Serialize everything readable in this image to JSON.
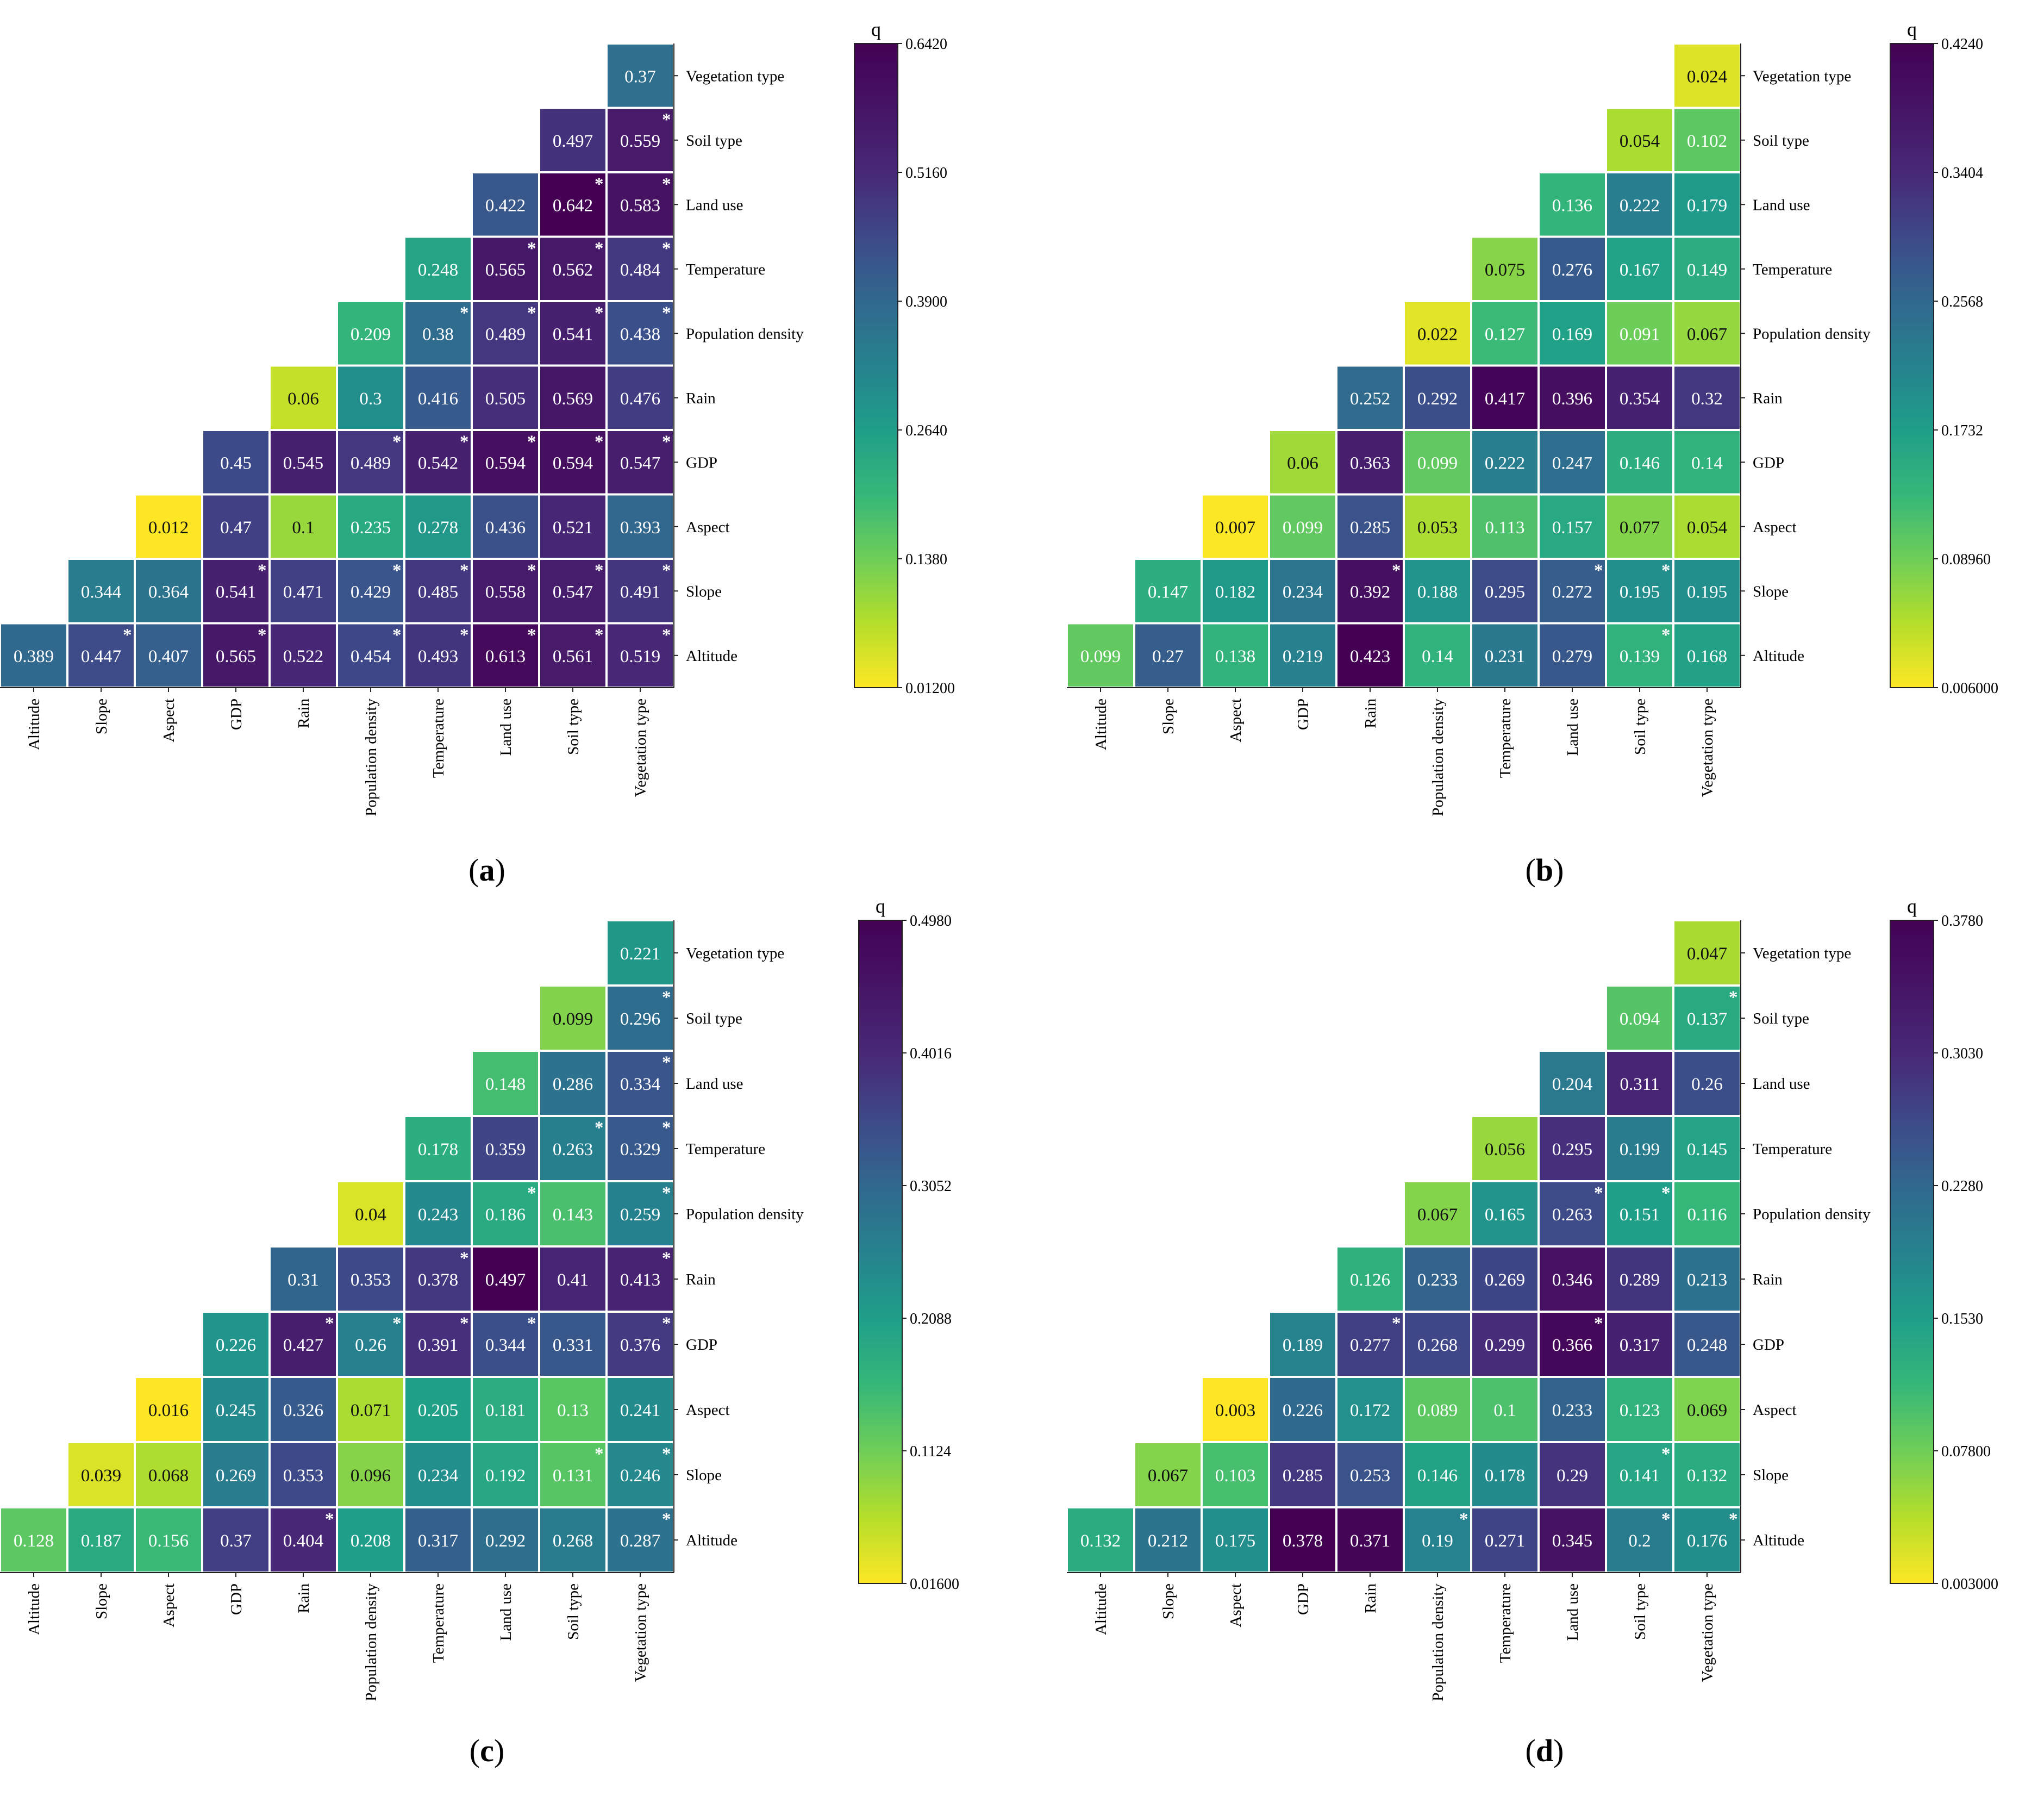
{
  "chart_data": [
    {
      "type": "heatmap",
      "panel_label": "(a)",
      "panel_letter": "a",
      "legend_title": "q",
      "colorbar_ticks": [
        "0.6420",
        "0.5160",
        "0.3900",
        "0.2640",
        "0.1380",
        "0.01200"
      ],
      "colorbar_range": [
        0.012,
        0.642
      ],
      "x_categories": [
        "Altitude",
        "Slope",
        "Aspect",
        "GDP",
        "Rain",
        "Population density",
        "Temperature",
        "Land use",
        "Soil type",
        "Vegetation type"
      ],
      "y_categories": [
        "Altitude",
        "Slope",
        "Aspect",
        "GDP",
        "Rain",
        "Population density",
        "Temperature",
        "Land use",
        "Soil type",
        "Vegetation type"
      ],
      "rows": [
        {
          "label": "Altitude",
          "values": [
            "0.389",
            "0.447",
            "0.407",
            "0.565",
            "0.522",
            "0.454",
            "0.493",
            "0.613",
            "0.561",
            "0.519"
          ],
          "stars": [
            0,
            1,
            0,
            1,
            0,
            1,
            1,
            1,
            1,
            1
          ]
        },
        {
          "label": "Slope",
          "values": [
            "0.344",
            "0.364",
            "0.541",
            "0.471",
            "0.429",
            "0.485",
            "0.558",
            "0.547",
            "0.491"
          ],
          "stars": [
            0,
            0,
            1,
            0,
            1,
            1,
            1,
            1,
            1
          ]
        },
        {
          "label": "Aspect",
          "values": [
            "0.012",
            "0.47",
            "0.1",
            "0.235",
            "0.278",
            "0.436",
            "0.521",
            "0.393"
          ],
          "stars": [
            0,
            0,
            0,
            0,
            0,
            0,
            0,
            0
          ]
        },
        {
          "label": "GDP",
          "values": [
            "0.45",
            "0.545",
            "0.489",
            "0.542",
            "0.594",
            "0.594",
            "0.547"
          ],
          "stars": [
            0,
            0,
            1,
            1,
            1,
            1,
            1
          ]
        },
        {
          "label": "Rain",
          "values": [
            "0.06",
            "0.3",
            "0.416",
            "0.505",
            "0.569",
            "0.476"
          ],
          "stars": [
            0,
            0,
            0,
            0,
            0,
            0
          ]
        },
        {
          "label": "Population density",
          "values": [
            "0.209",
            "0.38",
            "0.489",
            "0.541",
            "0.438"
          ],
          "stars": [
            0,
            1,
            1,
            1,
            1
          ]
        },
        {
          "label": "Temperature",
          "values": [
            "0.248",
            "0.565",
            "0.562",
            "0.484"
          ],
          "stars": [
            0,
            1,
            1,
            1
          ]
        },
        {
          "label": "Land use",
          "values": [
            "0.422",
            "0.642",
            "0.583"
          ],
          "stars": [
            0,
            1,
            1
          ]
        },
        {
          "label": "Soil type",
          "values": [
            "0.497",
            "0.559"
          ],
          "stars": [
            0,
            1
          ]
        },
        {
          "label": "Vegetation type",
          "values": [
            "0.37"
          ],
          "stars": [
            0
          ]
        }
      ]
    },
    {
      "type": "heatmap",
      "panel_label": "(b)",
      "panel_letter": "b",
      "legend_title": "q",
      "colorbar_ticks": [
        "0.4240",
        "0.3404",
        "0.2568",
        "0.1732",
        "0.08960",
        "0.006000"
      ],
      "colorbar_range": [
        0.006,
        0.424
      ],
      "x_categories": [
        "Altitude",
        "Slope",
        "Aspect",
        "GDP",
        "Rain",
        "Population density",
        "Temperature",
        "Land use",
        "Soil type",
        "Vegetation type"
      ],
      "y_categories": [
        "Altitude",
        "Slope",
        "Aspect",
        "GDP",
        "Rain",
        "Population density",
        "Temperature",
        "Land use",
        "Soil type",
        "Vegetation type"
      ],
      "rows": [
        {
          "label": "Altitude",
          "values": [
            "0.099",
            "0.27",
            "0.138",
            "0.219",
            "0.423",
            "0.14",
            "0.231",
            "0.279",
            "0.139",
            "0.168"
          ],
          "stars": [
            0,
            0,
            0,
            0,
            0,
            0,
            0,
            0,
            1,
            0
          ]
        },
        {
          "label": "Slope",
          "values": [
            "0.147",
            "0.182",
            "0.234",
            "0.392",
            "0.188",
            "0.295",
            "0.272",
            "0.195",
            "0.195"
          ],
          "stars": [
            0,
            0,
            0,
            1,
            0,
            0,
            1,
            1,
            0
          ]
        },
        {
          "label": "Aspect",
          "values": [
            "0.007",
            "0.099",
            "0.285",
            "0.053",
            "0.113",
            "0.157",
            "0.077",
            "0.054"
          ],
          "stars": [
            0,
            0,
            0,
            0,
            0,
            0,
            0,
            0
          ]
        },
        {
          "label": "GDP",
          "values": [
            "0.06",
            "0.363",
            "0.099",
            "0.222",
            "0.247",
            "0.146",
            "0.14"
          ],
          "stars": [
            0,
            0,
            0,
            0,
            0,
            0,
            0
          ]
        },
        {
          "label": "Rain",
          "values": [
            "0.252",
            "0.292",
            "0.417",
            "0.396",
            "0.354",
            "0.32"
          ],
          "stars": [
            0,
            0,
            0,
            0,
            0,
            0
          ]
        },
        {
          "label": "Population density",
          "values": [
            "0.022",
            "0.127",
            "0.169",
            "0.091",
            "0.067"
          ],
          "stars": [
            0,
            0,
            0,
            0,
            0
          ]
        },
        {
          "label": "Temperature",
          "values": [
            "0.075",
            "0.276",
            "0.167",
            "0.149"
          ],
          "stars": [
            0,
            0,
            0,
            0
          ]
        },
        {
          "label": "Land use",
          "values": [
            "0.136",
            "0.222",
            "0.179"
          ],
          "stars": [
            0,
            0,
            0
          ]
        },
        {
          "label": "Soil type",
          "values": [
            "0.054",
            "0.102"
          ],
          "stars": [
            0,
            0
          ]
        },
        {
          "label": "Vegetation type",
          "values": [
            "0.024"
          ],
          "stars": [
            0
          ]
        }
      ]
    },
    {
      "type": "heatmap",
      "panel_label": "(c)",
      "panel_letter": "c",
      "legend_title": "q",
      "colorbar_ticks": [
        "0.4980",
        "0.4016",
        "0.3052",
        "0.2088",
        "0.1124",
        "0.01600"
      ],
      "colorbar_range": [
        0.016,
        0.498
      ],
      "x_categories": [
        "Altitude",
        "Slope",
        "Aspect",
        "GDP",
        "Rain",
        "Population density",
        "Temperature",
        "Land use",
        "Soil type",
        "Vegetation type"
      ],
      "y_categories": [
        "Altitude",
        "Slope",
        "Aspect",
        "GDP",
        "Rain",
        "Population density",
        "Temperature",
        "Land use",
        "Soil type",
        "Vegetation type"
      ],
      "rows": [
        {
          "label": "Altitude",
          "values": [
            "0.128",
            "0.187",
            "0.156",
            "0.37",
            "0.404",
            "0.208",
            "0.317",
            "0.292",
            "0.268",
            "0.287"
          ],
          "stars": [
            0,
            0,
            0,
            0,
            1,
            0,
            0,
            0,
            0,
            1
          ]
        },
        {
          "label": "Slope",
          "values": [
            "0.039",
            "0.068",
            "0.269",
            "0.353",
            "0.096",
            "0.234",
            "0.192",
            "0.131",
            "0.246"
          ],
          "stars": [
            0,
            0,
            0,
            0,
            0,
            0,
            0,
            1,
            1
          ]
        },
        {
          "label": "Aspect",
          "values": [
            "0.016",
            "0.245",
            "0.326",
            "0.071",
            "0.205",
            "0.181",
            "0.13",
            "0.241"
          ],
          "stars": [
            0,
            0,
            0,
            0,
            0,
            0,
            0,
            0
          ]
        },
        {
          "label": "GDP",
          "values": [
            "0.226",
            "0.427",
            "0.26",
            "0.391",
            "0.344",
            "0.331",
            "0.376"
          ],
          "stars": [
            0,
            1,
            1,
            1,
            1,
            0,
            1
          ]
        },
        {
          "label": "Rain",
          "values": [
            "0.31",
            "0.353",
            "0.378",
            "0.497",
            "0.41",
            "0.413"
          ],
          "stars": [
            0,
            0,
            1,
            0,
            0,
            1
          ]
        },
        {
          "label": "Population density",
          "values": [
            "0.04",
            "0.243",
            "0.186",
            "0.143",
            "0.259"
          ],
          "stars": [
            0,
            0,
            1,
            0,
            1
          ]
        },
        {
          "label": "Temperature",
          "values": [
            "0.178",
            "0.359",
            "0.263",
            "0.329"
          ],
          "stars": [
            0,
            0,
            1,
            1
          ]
        },
        {
          "label": "Land use",
          "values": [
            "0.148",
            "0.286",
            "0.334"
          ],
          "stars": [
            0,
            0,
            1
          ]
        },
        {
          "label": "Soil type",
          "values": [
            "0.099",
            "0.296"
          ],
          "stars": [
            0,
            1
          ]
        },
        {
          "label": "Vegetation type",
          "values": [
            "0.221"
          ],
          "stars": [
            0
          ]
        }
      ]
    },
    {
      "type": "heatmap",
      "panel_label": "(d)",
      "panel_letter": "d",
      "legend_title": "q",
      "colorbar_ticks": [
        "0.3780",
        "0.3030",
        "0.2280",
        "0.1530",
        "0.07800",
        "0.003000"
      ],
      "colorbar_range": [
        0.003,
        0.378
      ],
      "x_categories": [
        "Altitude",
        "Slope",
        "Aspect",
        "GDP",
        "Rain",
        "Population density",
        "Temperature",
        "Land use",
        "Soil type",
        "Vegetation type"
      ],
      "y_categories": [
        "Altitude",
        "Slope",
        "Aspect",
        "GDP",
        "Rain",
        "Population density",
        "Temperature",
        "Land use",
        "Soil type",
        "Vegetation type"
      ],
      "rows": [
        {
          "label": "Altitude",
          "values": [
            "0.132",
            "0.212",
            "0.175",
            "0.378",
            "0.371",
            "0.19",
            "0.271",
            "0.345",
            "0.2",
            "0.176"
          ],
          "stars": [
            0,
            0,
            0,
            0,
            0,
            1,
            0,
            0,
            1,
            1
          ]
        },
        {
          "label": "Slope",
          "values": [
            "0.067",
            "0.103",
            "0.285",
            "0.253",
            "0.146",
            "0.178",
            "0.29",
            "0.141",
            "0.132"
          ],
          "stars": [
            0,
            0,
            0,
            0,
            0,
            0,
            0,
            1,
            0
          ]
        },
        {
          "label": "Aspect",
          "values": [
            "0.003",
            "0.226",
            "0.172",
            "0.089",
            "0.1",
            "0.233",
            "0.123",
            "0.069"
          ],
          "stars": [
            0,
            0,
            0,
            0,
            0,
            0,
            0,
            0
          ]
        },
        {
          "label": "GDP",
          "values": [
            "0.189",
            "0.277",
            "0.268",
            "0.299",
            "0.366",
            "0.317",
            "0.248"
          ],
          "stars": [
            0,
            1,
            0,
            0,
            1,
            0,
            0
          ]
        },
        {
          "label": "Rain",
          "values": [
            "0.126",
            "0.233",
            "0.269",
            "0.346",
            "0.289",
            "0.213"
          ],
          "stars": [
            0,
            0,
            0,
            0,
            0,
            0
          ]
        },
        {
          "label": "Population density",
          "values": [
            "0.067",
            "0.165",
            "0.263",
            "0.151",
            "0.116"
          ],
          "stars": [
            0,
            0,
            1,
            1,
            0
          ]
        },
        {
          "label": "Temperature",
          "values": [
            "0.056",
            "0.295",
            "0.199",
            "0.145"
          ],
          "stars": [
            0,
            0,
            0,
            0
          ]
        },
        {
          "label": "Land use",
          "values": [
            "0.204",
            "0.311",
            "0.26"
          ],
          "stars": [
            0,
            0,
            0
          ]
        },
        {
          "label": "Soil type",
          "values": [
            "0.094",
            "0.137"
          ],
          "stars": [
            0,
            1
          ]
        },
        {
          "label": "Vegetation type",
          "values": [
            "0.047"
          ],
          "stars": [
            0
          ]
        }
      ]
    }
  ]
}
